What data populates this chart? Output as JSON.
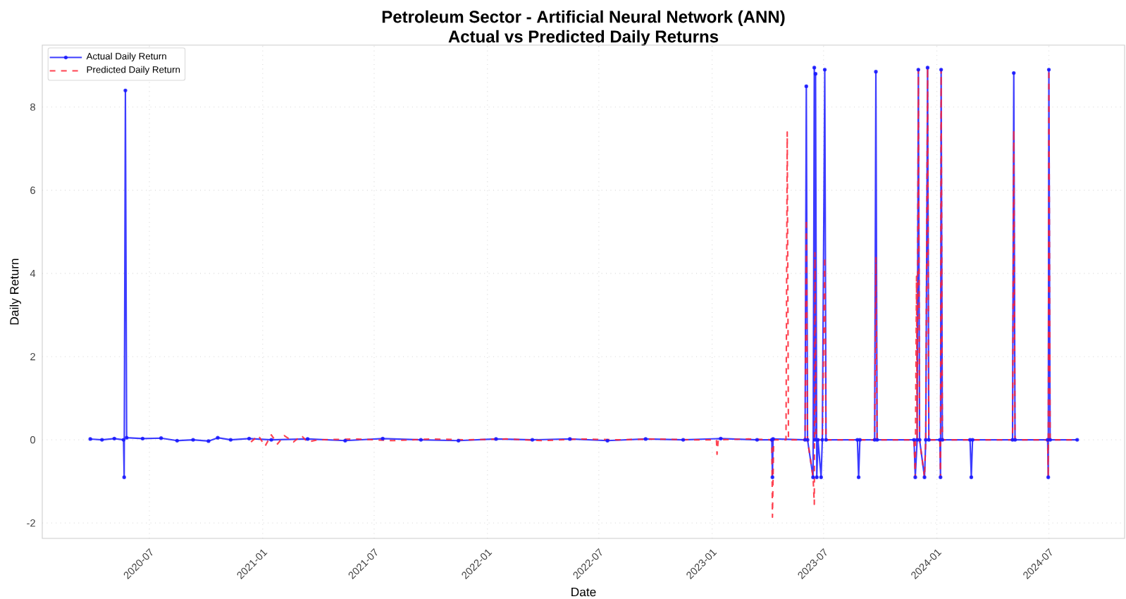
{
  "chart_data": {
    "type": "line",
    "title": "Petroleum Sector - Artificial Neural Network (ANN)",
    "subtitle": "Actual vs Predicted Daily Returns",
    "xlabel": "Date",
    "ylabel": "Daily Return",
    "xlim": [
      "2020-01-09",
      "2024-11-01"
    ],
    "ylim": [
      -2.37,
      9.49
    ],
    "xticks": [
      "2020-07",
      "2021-01",
      "2021-07",
      "2022-01",
      "2022-07",
      "2023-01",
      "2023-07",
      "2024-01",
      "2024-07"
    ],
    "yticks": [
      -2,
      0,
      2,
      4,
      6,
      8
    ],
    "grid": true,
    "legend": "top left",
    "series": [
      {
        "name": "Actual Daily Return",
        "color": "#1a1aff",
        "marker": "circle",
        "line_style": "solid",
        "x": [
          "2020-03-27",
          "2020-04-15",
          "2020-05-05",
          "2020-05-20",
          "2020-05-21",
          "2020-05-23",
          "2020-05-25",
          "2020-06-20",
          "2020-07-20",
          "2020-08-15",
          "2020-09-10",
          "2020-10-05",
          "2020-10-20",
          "2020-11-10",
          "2020-12-10",
          "2021-01-15",
          "2021-03-15",
          "2021-05-15",
          "2021-07-15",
          "2021-09-15",
          "2021-11-15",
          "2022-01-15",
          "2022-03-15",
          "2022-05-15",
          "2022-07-15",
          "2022-09-15",
          "2022-11-15",
          "2023-01-15",
          "2023-03-15",
          "2023-04-08",
          "2023-04-09",
          "2023-04-10",
          "2023-06-01",
          "2023-06-03",
          "2023-06-05",
          "2023-06-14",
          "2023-06-16",
          "2023-06-17",
          "2023-06-18",
          "2023-06-20",
          "2023-06-22",
          "2023-06-27",
          "2023-06-29",
          "2023-07-03",
          "2023-07-05",
          "2023-08-25",
          "2023-08-27",
          "2023-08-29",
          "2023-09-22",
          "2023-09-24",
          "2023-09-26",
          "2023-11-25",
          "2023-11-27",
          "2023-11-30",
          "2023-12-02",
          "2023-12-04",
          "2023-12-12",
          "2023-12-14",
          "2023-12-17",
          "2023-12-19",
          "2024-01-06",
          "2024-01-07",
          "2024-01-08",
          "2024-01-10",
          "2024-02-24",
          "2024-02-26",
          "2024-02-28",
          "2024-05-03",
          "2024-05-05",
          "2024-05-07",
          "2024-06-29",
          "2024-06-30",
          "2024-07-01",
          "2024-07-03",
          "2024-08-16"
        ],
        "values": [
          0.02,
          0.0,
          0.03,
          0.0,
          -0.9,
          8.4,
          0.05,
          0.03,
          0.04,
          -0.02,
          0.0,
          -0.03,
          0.05,
          0.0,
          0.03,
          0.0,
          0.02,
          -0.02,
          0.03,
          0.0,
          -0.02,
          0.02,
          0.0,
          0.02,
          -0.02,
          0.02,
          0.0,
          0.03,
          0.0,
          0.0,
          -0.9,
          0.02,
          0.0,
          8.5,
          0.0,
          -0.9,
          8.95,
          0.0,
          8.8,
          -0.9,
          0.0,
          -0.9,
          0.0,
          8.9,
          0.0,
          0.0,
          -0.9,
          0.0,
          0.0,
          8.85,
          0.0,
          0.0,
          -0.9,
          0.0,
          8.9,
          0.0,
          -0.9,
          0.0,
          8.95,
          0.0,
          0.0,
          -0.9,
          8.9,
          0.0,
          0.0,
          -0.9,
          0.0,
          0.0,
          8.82,
          0.0,
          0.0,
          -0.9,
          8.9,
          0.0,
          0.0
        ]
      },
      {
        "name": "Predicted Daily Return",
        "color": "#ff2233",
        "line_style": "dashed",
        "x": [
          "2020-12-13",
          "2020-12-25",
          "2021-01-05",
          "2021-01-15",
          "2021-01-25",
          "2021-02-05",
          "2021-02-20",
          "2021-03-05",
          "2021-03-15",
          "2021-04-01",
          "2021-06-01",
          "2021-08-01",
          "2021-10-01",
          "2021-12-01",
          "2022-02-01",
          "2022-04-01",
          "2022-06-01",
          "2022-08-01",
          "2022-10-01",
          "2022-12-01",
          "2023-01-08",
          "2023-01-09",
          "2023-01-11",
          "2023-03-01",
          "2023-04-08",
          "2023-04-09",
          "2023-04-11",
          "2023-05-01",
          "2023-05-03",
          "2023-05-05",
          "2023-06-01",
          "2023-06-03",
          "2023-06-05",
          "2023-06-14",
          "2023-06-16",
          "2023-06-17",
          "2023-06-19",
          "2023-06-29",
          "2023-07-03",
          "2023-07-05",
          "2023-09-22",
          "2023-09-24",
          "2023-09-26",
          "2023-11-25",
          "2023-11-27",
          "2023-11-29",
          "2023-11-30",
          "2023-12-02",
          "2023-12-04",
          "2023-12-12",
          "2023-12-14",
          "2023-12-17",
          "2023-12-19",
          "2024-01-06",
          "2024-01-07",
          "2024-01-08",
          "2024-01-10",
          "2024-05-03",
          "2024-05-05",
          "2024-05-07",
          "2024-06-29",
          "2024-06-30",
          "2024-07-01",
          "2024-07-03",
          "2024-08-16"
        ],
        "values": [
          -0.05,
          0.1,
          -0.15,
          0.12,
          -0.1,
          0.1,
          -0.05,
          0.1,
          -0.05,
          0.0,
          0.02,
          -0.02,
          0.02,
          0.0,
          0.02,
          -0.02,
          0.02,
          0.0,
          0.02,
          0.0,
          0.0,
          -0.35,
          0.0,
          0.02,
          0.0,
          -1.86,
          0.0,
          0.0,
          7.4,
          0.0,
          0.0,
          5.3,
          0.0,
          -0.9,
          -1.55,
          4.5,
          0.0,
          0.0,
          4.4,
          0.0,
          0.0,
          4.38,
          0.0,
          0.0,
          -0.9,
          3.93,
          0.0,
          8.9,
          0.0,
          -0.9,
          0.0,
          8.95,
          0.0,
          0.0,
          -0.9,
          8.9,
          0.0,
          0.0,
          7.45,
          0.0,
          0.0,
          -0.9,
          8.9,
          0.0,
          0.0
        ]
      }
    ]
  }
}
